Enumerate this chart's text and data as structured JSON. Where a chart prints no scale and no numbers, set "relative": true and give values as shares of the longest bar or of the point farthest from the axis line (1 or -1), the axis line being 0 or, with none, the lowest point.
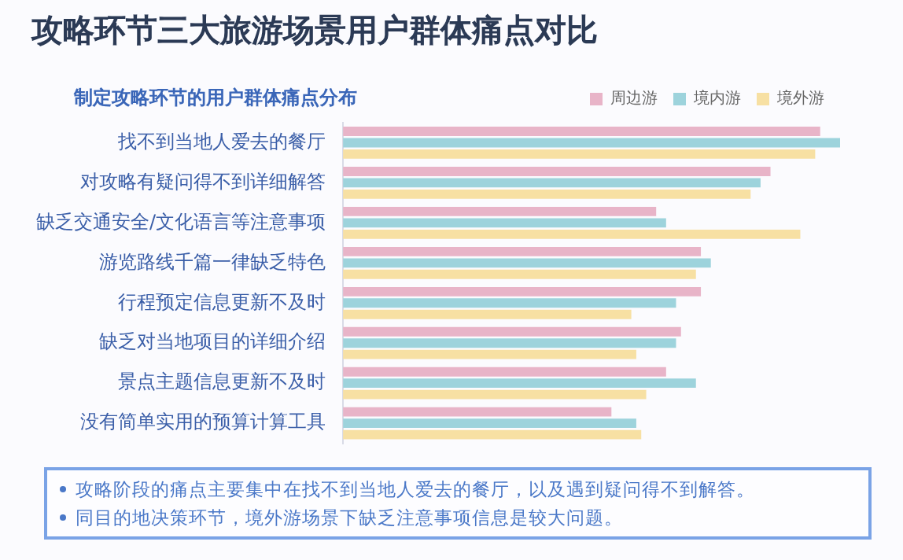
{
  "chart_data": {
    "type": "bar",
    "orientation": "horizontal",
    "relative": true,
    "title": "攻略环节三大旅游场景用户群体痛点对比",
    "subtitle": "制定攻略环节的用户群体痛点分布",
    "categories": [
      "找不到当地人爱去的餐厅",
      "对攻略有疑问得不到详细解答",
      "缺乏交通安全/文化语言等注意事项",
      "游览路线千篇一律缺乏特色",
      "行程预定信息更新不及时",
      "缺乏对当地项目的详细介绍",
      "景点主题信息更新不及时",
      "没有简单实用的预算计算工具"
    ],
    "series": [
      {
        "name": "周边游",
        "color": "#e8b4c8",
        "values": [
          0.96,
          0.86,
          0.63,
          0.72,
          0.72,
          0.68,
          0.65,
          0.54
        ]
      },
      {
        "name": "境内游",
        "color": "#9dd3dc",
        "values": [
          1,
          0.84,
          0.65,
          0.74,
          0.67,
          0.67,
          0.71,
          0.59
        ]
      },
      {
        "name": "境外游",
        "color": "#f7e0a3",
        "values": [
          0.95,
          0.82,
          0.92,
          0.71,
          0.58,
          0.59,
          0.61,
          0.6
        ]
      }
    ],
    "legend": "top right",
    "grid": false,
    "annotations": [
      "攻略阶段的痛点主要集中在找不到当地人爱去的餐厅，以及遇到疑问得不到解答。",
      "同目的地决策环节，境外游场景下缺乏注意事项信息是较大问题。"
    ]
  }
}
